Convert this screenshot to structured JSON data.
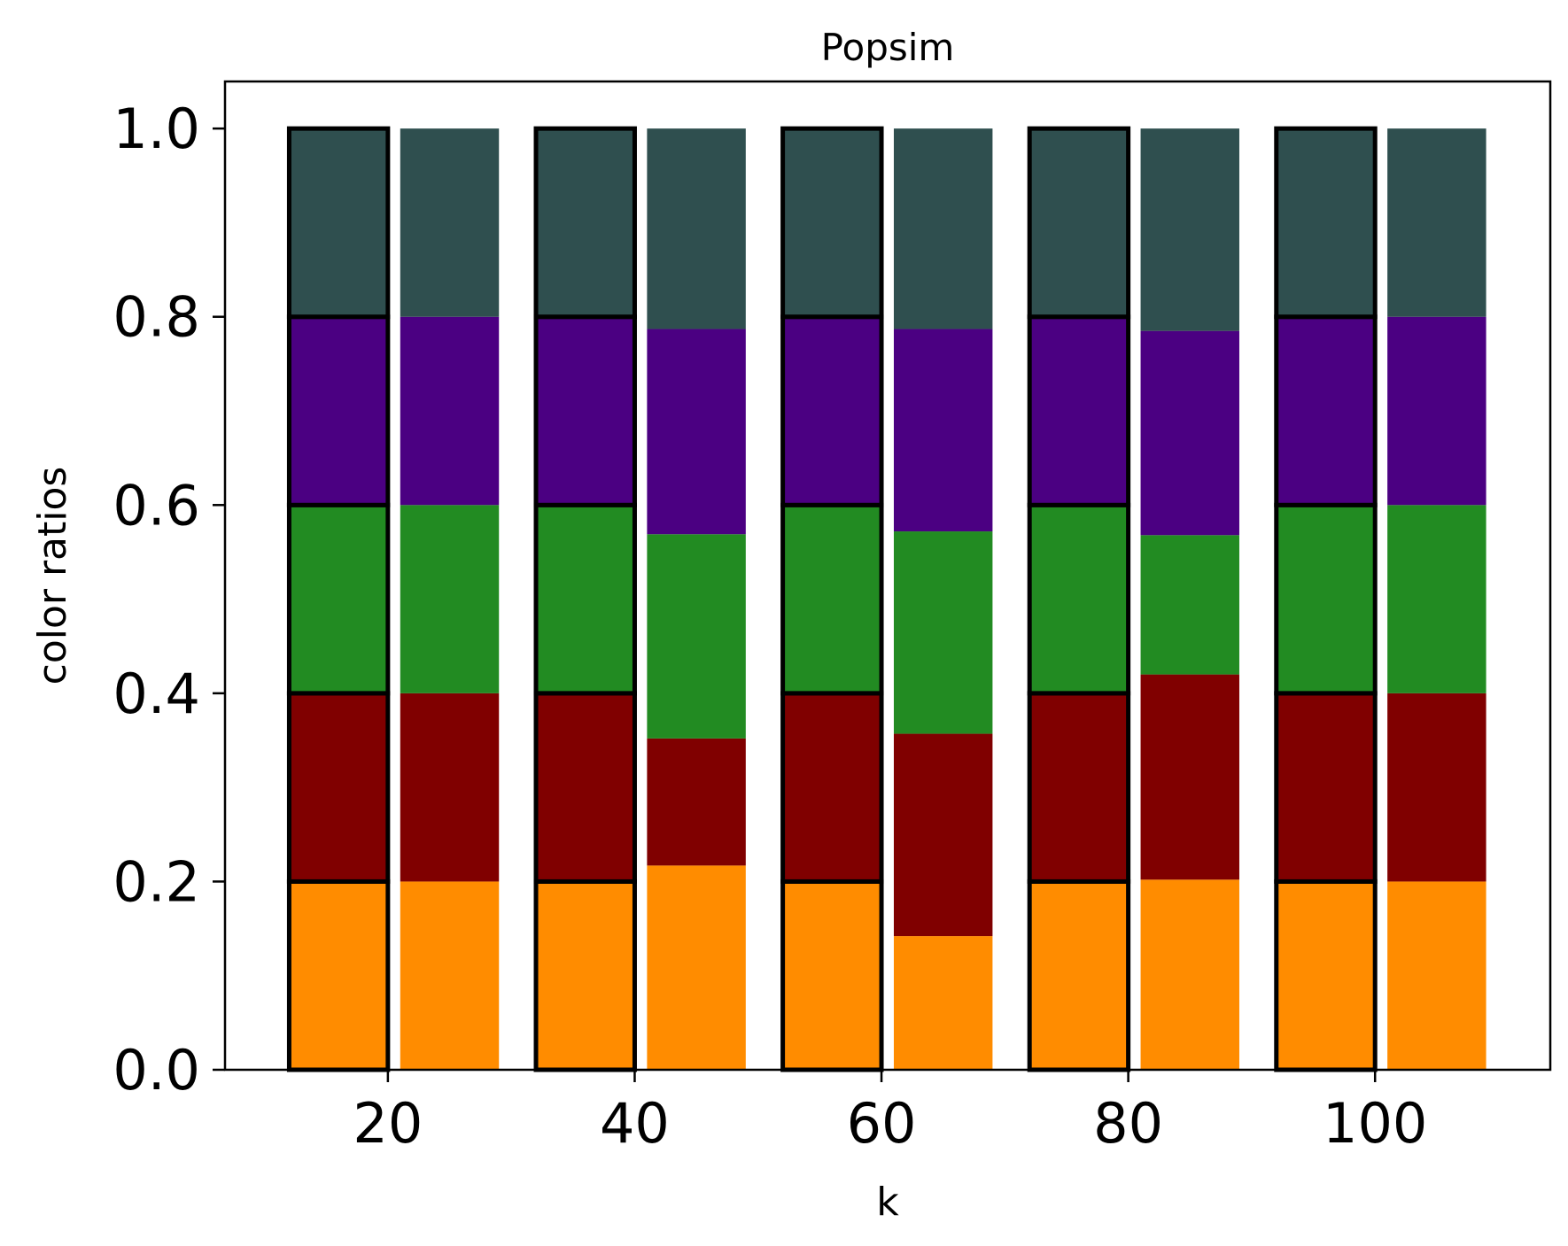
{
  "chart_data": {
    "type": "bar",
    "stacked": true,
    "title": "Popsim",
    "xlabel": "k",
    "ylabel": "color ratios",
    "xlim": [
      6.8,
      114.2
    ],
    "ylim": [
      0,
      1.05
    ],
    "xticks": [
      20,
      40,
      60,
      80,
      100
    ],
    "yticks": [
      0.0,
      0.2,
      0.4,
      0.6,
      0.8,
      1.0
    ],
    "ytick_labels": [
      "0.0",
      "0.2",
      "0.4",
      "0.6",
      "0.8",
      "1.0"
    ],
    "grid": false,
    "legend": "none",
    "colors": [
      "#ff8c00",
      "#800000",
      "#228b22",
      "#4b0082",
      "#2f4f4f"
    ],
    "bar_width": 8,
    "groups": [
      {
        "name": "outlined",
        "outlined": true,
        "x": [
          16,
          36,
          56,
          76,
          96
        ],
        "segments": [
          [
            0.2,
            0.2,
            0.2,
            0.2,
            0.2
          ],
          [
            0.2,
            0.2,
            0.2,
            0.2,
            0.2
          ],
          [
            0.2,
            0.2,
            0.2,
            0.2,
            0.2
          ],
          [
            0.2,
            0.2,
            0.2,
            0.2,
            0.2
          ],
          [
            0.2,
            0.2,
            0.2,
            0.2,
            0.2
          ]
        ]
      },
      {
        "name": "filled",
        "outlined": false,
        "x": [
          25,
          45,
          65,
          85,
          105
        ],
        "segments": [
          [
            0.2,
            0.217,
            0.142,
            0.202,
            0.2
          ],
          [
            0.2,
            0.135,
            0.215,
            0.218,
            0.2
          ],
          [
            0.2,
            0.217,
            0.215,
            0.148,
            0.2
          ],
          [
            0.2,
            0.218,
            0.215,
            0.217,
            0.2
          ],
          [
            0.2,
            0.213,
            0.213,
            0.215,
            0.2
          ]
        ]
      }
    ]
  }
}
